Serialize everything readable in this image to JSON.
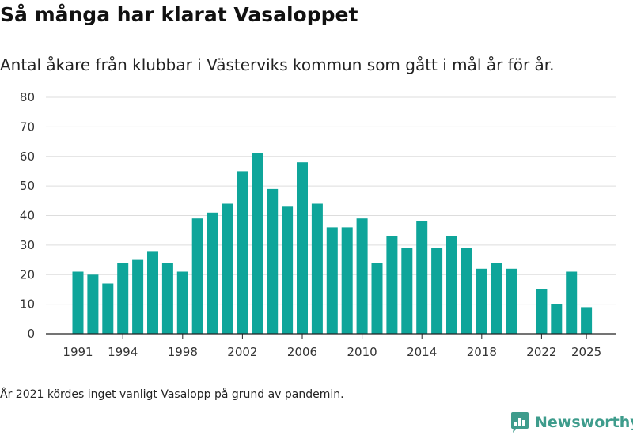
{
  "header": {
    "title": "Så många har klarat Vasaloppet",
    "subtitle": "Antal åkare från klubbar i Västerviks kommun som gått i mål år för år."
  },
  "footer": {
    "note": "År 2021 kördes inget vanligt Vasalopp på grund av pandemin.",
    "brand": "Newsworthy",
    "brand_color": "#3e9c8c"
  },
  "chart_data": {
    "type": "bar",
    "title": "Så många har klarat Vasaloppet",
    "subtitle": "Antal åkare från klubbar i Västerviks kommun som gått i mål år för år.",
    "xlabel": "",
    "ylabel": "",
    "bar_color": "#0ea59a",
    "grid": true,
    "ylim": [
      0,
      80
    ],
    "yticks": [
      0,
      10,
      20,
      30,
      40,
      50,
      60,
      70,
      80
    ],
    "xticks": [
      "1991",
      "1994",
      "1998",
      "2002",
      "2006",
      "2010",
      "2014",
      "2018",
      "2022",
      "2025"
    ],
    "categories": [
      "1991",
      "1992",
      "1993",
      "1994",
      "1995",
      "1996",
      "1997",
      "1998",
      "1999",
      "2000",
      "2001",
      "2002",
      "2003",
      "2004",
      "2005",
      "2006",
      "2007",
      "2008",
      "2009",
      "2010",
      "2011",
      "2012",
      "2013",
      "2014",
      "2015",
      "2016",
      "2017",
      "2018",
      "2019",
      "2020",
      "2021",
      "2022",
      "2023",
      "2024",
      "2025"
    ],
    "values": [
      21,
      20,
      17,
      24,
      25,
      28,
      24,
      21,
      39,
      41,
      44,
      55,
      61,
      49,
      43,
      58,
      44,
      36,
      36,
      39,
      24,
      33,
      29,
      38,
      29,
      33,
      29,
      22,
      24,
      22,
      null,
      15,
      10,
      21,
      9
    ]
  }
}
